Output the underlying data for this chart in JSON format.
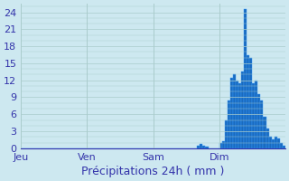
{
  "title": "Précipitations 24h ( mm )",
  "background_color": "#cde8f0",
  "bar_color": "#1a6bbf",
  "bar_edge_color": "#3399ff",
  "grid_color": "#aacccc",
  "ylim": [
    0,
    25.5
  ],
  "yticks": [
    0,
    3,
    6,
    9,
    12,
    15,
    18,
    21,
    24
  ],
  "n_bars": 96,
  "day_labels": [
    "Jeu",
    "Ven",
    "Sam",
    "Dim"
  ],
  "day_positions": [
    0,
    24,
    48,
    72
  ],
  "values": [
    0,
    0,
    0,
    0,
    0,
    0,
    0,
    0,
    0,
    0,
    0,
    0,
    0,
    0,
    0,
    0,
    0,
    0,
    0,
    0,
    0,
    0,
    0,
    0,
    0,
    0,
    0,
    0,
    0,
    0,
    0,
    0,
    0,
    0,
    0,
    0,
    0,
    0,
    0,
    0,
    0,
    0,
    0,
    0,
    0,
    0,
    0,
    0,
    0,
    0,
    0,
    0,
    0,
    0,
    0,
    0,
    0,
    0,
    0,
    0,
    0,
    0,
    0,
    0,
    0.4,
    0.7,
    0.5,
    0.3,
    0,
    0,
    0,
    0,
    1.0,
    1.2,
    5.0,
    8.5,
    12.5,
    13.0,
    12.0,
    11.5,
    13.5,
    24.5,
    16.5,
    16.0,
    11.5,
    12.0,
    9.5,
    8.5,
    5.5,
    3.5,
    2.0,
    1.5,
    2.0,
    1.8,
    1.0,
    0.5,
    0.3,
    0.2
  ],
  "axis_text_color": "#3333aa",
  "title_color": "#3333aa",
  "title_fontsize": 9,
  "tick_fontsize": 8
}
